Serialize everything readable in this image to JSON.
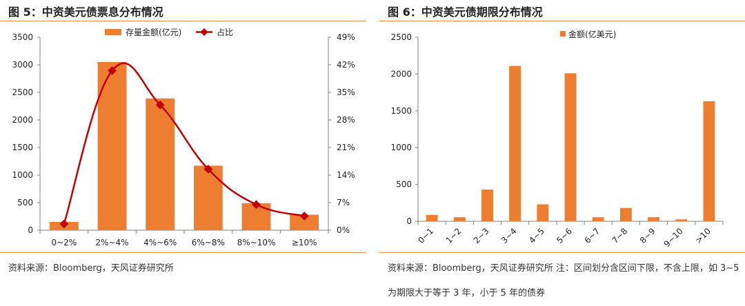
{
  "left": {
    "title": "图 5：中资美元债票息分布情况",
    "source": "资料来源：Bloomberg，天风证券研究所",
    "chart_data": {
      "type": "bar",
      "categories": [
        "0~2%",
        "2%~4%",
        "4%~6%",
        "6%~8%",
        "8%~10%",
        "≥10%"
      ],
      "series": [
        {
          "name": "存量金额(亿元)",
          "type": "bar",
          "axis": "left",
          "color": "#ED7D31",
          "values": [
            150,
            3050,
            2390,
            1170,
            490,
            280
          ]
        },
        {
          "name": "占比",
          "type": "line",
          "axis": "right",
          "color": "#C00000",
          "values": [
            1.6,
            40.5,
            31.8,
            15.5,
            6.5,
            3.6
          ]
        }
      ],
      "y_left": {
        "min": 0,
        "max": 3500,
        "ticks": [
          "0",
          "500",
          "1000",
          "1500",
          "2000",
          "2500",
          "3000",
          "3500"
        ]
      },
      "y_right": {
        "min": 0,
        "max": 49,
        "ticks": [
          "0%",
          "7%",
          "14%",
          "21%",
          "28%",
          "35%",
          "42%",
          "49%"
        ]
      },
      "legend": "top",
      "grid": false
    }
  },
  "right": {
    "title": "图 6：中资美元债期限分布情况",
    "source": "资料来源：Bloomberg，天风证券研究所 注：区间划分含区间下限，不含上限，如 3~5 为期限大于等于 3 年，小于 5 年的债券",
    "chart_data": {
      "type": "bar",
      "categories": [
        "0~1",
        "1~2",
        "2~3",
        "3~4",
        "4~5",
        "5~6",
        "6~7",
        "7~8",
        "8~9",
        "9~10",
        ">10"
      ],
      "series": [
        {
          "name": "金额(亿美元)",
          "color": "#ED7D31",
          "values": [
            85,
            55,
            430,
            2110,
            230,
            2010,
            55,
            180,
            55,
            25,
            1630
          ]
        }
      ],
      "y": {
        "min": 0,
        "max": 2500,
        "ticks": [
          "0",
          "500",
          "1000",
          "1500",
          "2000",
          "2500"
        ]
      },
      "legend": "top",
      "grid": false
    }
  }
}
